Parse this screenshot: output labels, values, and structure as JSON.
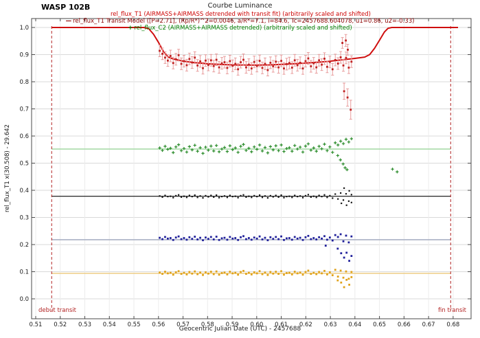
{
  "header": {
    "object": "WASP 102B",
    "chart_title": "Courbe Luminance"
  },
  "legend": {
    "entries": [
      {
        "marker_glyph": "",
        "label": "rel_flux_T1 (AIRMASS+AIRMASS detrended with transit fit) (arbitrarily scaled and shifted)",
        "color": "#cc0000"
      },
      {
        "marker_glyph": "—",
        "label": "rel_flux_T1 Transit Model ([P=2.71], (Rp/R*)^2=0.0046, a/R*=7.1, i=84.6, Tc=2457688.604078, u1=0.86, u2=-0.33)",
        "color": "#8b0000"
      },
      {
        "marker_glyph": "+",
        "label": "rel_flux_C2 (AIRMASS+AIRMASS detrended) (arbitrarily scaled and shifted)",
        "color": "#008000"
      }
    ]
  },
  "annotations": {
    "transit_start_label": "debut transit",
    "transit_end_label": "fin transit",
    "transit_start_x": 0.5165,
    "transit_end_x": 0.679,
    "line_color": "#b22222"
  },
  "chart_data": {
    "type": "scatter",
    "title": "Courbe Luminance",
    "xlabel": "Geocentric Julian Date (UTC) - 2457688",
    "ylabel": "rel_flux_T1 x(30.508) - 29.642",
    "x_ticks": [
      "0.51",
      "0.52",
      "0.53",
      "0.54",
      "0.55",
      "0.56",
      "0.57",
      "0.58",
      "0.59",
      "0.60",
      "0.61",
      "0.62",
      "0.63",
      "0.64",
      "0.65",
      "0.66",
      "0.67",
      "0.68"
    ],
    "y_ticks": [
      "0.0",
      "0.1",
      "0.2",
      "0.3",
      "0.4",
      "0.5",
      "0.6",
      "0.7",
      "0.8",
      "0.9",
      "1.0"
    ],
    "x_tick_values": [
      0.51,
      0.52,
      0.53,
      0.54,
      0.55,
      0.56,
      0.57,
      0.58,
      0.59,
      0.6,
      0.61,
      0.62,
      0.63,
      0.64,
      0.65,
      0.66,
      0.67,
      0.68
    ],
    "y_tick_values": [
      0.0,
      0.1,
      0.2,
      0.3,
      0.4,
      0.5,
      0.6,
      0.7,
      0.8,
      0.9,
      1.0
    ],
    "x_range": [
      0.50832,
      0.68731
    ],
    "y_range": [
      -0.0734,
      1.0329
    ],
    "grid": true,
    "legend_position": "top-center",
    "model": {
      "name": "rel_flux_T1 Transit Model",
      "color": "#cf0e0e",
      "points": [
        [
          0.5165,
          1.0
        ],
        [
          0.554,
          1.0
        ],
        [
          0.556,
          0.996
        ],
        [
          0.558,
          0.975
        ],
        [
          0.56,
          0.945
        ],
        [
          0.562,
          0.912
        ],
        [
          0.564,
          0.891
        ],
        [
          0.566,
          0.884
        ],
        [
          0.57,
          0.876
        ],
        [
          0.575,
          0.87
        ],
        [
          0.58,
          0.866
        ],
        [
          0.585,
          0.864
        ],
        [
          0.59,
          0.862
        ],
        [
          0.595,
          0.8615
        ],
        [
          0.6,
          0.8615
        ],
        [
          0.605,
          0.862
        ],
        [
          0.61,
          0.864
        ],
        [
          0.615,
          0.866
        ],
        [
          0.62,
          0.869
        ],
        [
          0.625,
          0.872
        ],
        [
          0.63,
          0.876
        ],
        [
          0.635,
          0.881
        ],
        [
          0.64,
          0.886
        ],
        [
          0.644,
          0.891
        ],
        [
          0.646,
          0.9
        ],
        [
          0.648,
          0.923
        ],
        [
          0.65,
          0.953
        ],
        [
          0.652,
          0.983
        ],
        [
          0.6535,
          0.997
        ],
        [
          0.655,
          1.0
        ],
        [
          0.682,
          1.0
        ]
      ]
    },
    "x_common": [
      0.5605,
      0.5616,
      0.5627,
      0.5638,
      0.5649,
      0.566,
      0.5671,
      0.5682,
      0.5693,
      0.5704,
      0.5715,
      0.5726,
      0.5737,
      0.5748,
      0.5759,
      0.577,
      0.5781,
      0.5792,
      0.5803,
      0.5814,
      0.5825,
      0.5836,
      0.5847,
      0.5858,
      0.5869,
      0.588,
      0.5891,
      0.5902,
      0.5913,
      0.5924,
      0.5935,
      0.5946,
      0.5957,
      0.5968,
      0.5979,
      0.599,
      0.6001,
      0.6012,
      0.6023,
      0.6034,
      0.6045,
      0.6056,
      0.6067,
      0.6078,
      0.6089,
      0.61,
      0.6111,
      0.6122,
      0.6133,
      0.6144,
      0.6155,
      0.6166,
      0.6177,
      0.6188,
      0.6199,
      0.621,
      0.6221,
      0.6232,
      0.6243,
      0.6254,
      0.6265,
      0.6276,
      0.6287,
      0.6298,
      0.6309,
      0.632,
      0.6331,
      0.6342,
      0.6353,
      0.6364,
      0.6375,
      0.6386
    ],
    "series": [
      {
        "id": "red-target",
        "name": "rel_flux_T1",
        "marker": "square",
        "color": "#bf2020",
        "errorbar_color": "#e89b9b",
        "err": 0.0215,
        "y": [
          0.914,
          0.903,
          0.889,
          0.878,
          0.895,
          0.869,
          0.883,
          0.898,
          0.866,
          0.876,
          0.861,
          0.884,
          0.871,
          0.889,
          0.86,
          0.875,
          0.85,
          0.878,
          0.862,
          0.879,
          0.858,
          0.881,
          0.853,
          0.868,
          0.872,
          0.851,
          0.876,
          0.859,
          0.866,
          0.846,
          0.872,
          0.881,
          0.853,
          0.863,
          0.849,
          0.873,
          0.858,
          0.877,
          0.851,
          0.866,
          0.843,
          0.87,
          0.857,
          0.874,
          0.853,
          0.877,
          0.849,
          0.865,
          0.869,
          0.852,
          0.879,
          0.861,
          0.87,
          0.849,
          0.876,
          0.886,
          0.857,
          0.868,
          0.853,
          0.879,
          0.863,
          0.885,
          0.855,
          0.873,
          0.846,
          0.88,
          0.867,
          0.89,
          0.86,
          0.888,
          0.852,
          0.874
        ],
        "outliers": [
          [
            0.6349,
            0.943,
            0.02
          ],
          [
            0.6363,
            0.952,
            0.022
          ],
          [
            0.6371,
            0.918,
            0.02
          ],
          [
            0.6356,
            0.765,
            0.03
          ],
          [
            0.637,
            0.742,
            0.032
          ],
          [
            0.6383,
            0.697,
            0.035
          ]
        ]
      },
      {
        "id": "green-comparison",
        "name": "rel_flux_C2",
        "marker": "plus",
        "color": "#2a8c2a",
        "baseline": 0.552,
        "baseline_color": "#a9dca9",
        "y": [
          0.556,
          0.547,
          0.562,
          0.551,
          0.555,
          0.539,
          0.56,
          0.568,
          0.546,
          0.554,
          0.541,
          0.561,
          0.549,
          0.566,
          0.544,
          0.557,
          0.536,
          0.559,
          0.548,
          0.563,
          0.545,
          0.565,
          0.542,
          0.552,
          0.558,
          0.543,
          0.564,
          0.55,
          0.556,
          0.54,
          0.562,
          0.569,
          0.547,
          0.555,
          0.542,
          0.56,
          0.551,
          0.567,
          0.545,
          0.558,
          0.538,
          0.561,
          0.549,
          0.564,
          0.546,
          0.567,
          0.543,
          0.554,
          0.557,
          0.544,
          0.565,
          0.552,
          0.559,
          0.541,
          0.563,
          0.571,
          0.548,
          0.556,
          0.544,
          0.562,
          0.553,
          0.57,
          0.546,
          0.56,
          0.54,
          0.575,
          0.567,
          0.581,
          0.572,
          0.588,
          0.578,
          0.59
        ],
        "outliers": [
          [
            0.633,
            0.528
          ],
          [
            0.6341,
            0.512
          ],
          [
            0.6352,
            0.497
          ],
          [
            0.636,
            0.483
          ],
          [
            0.6368,
            0.476
          ],
          [
            0.6553,
            0.478
          ],
          [
            0.6572,
            0.468
          ]
        ]
      },
      {
        "id": "black-series",
        "name": "",
        "marker": "square",
        "color": "#161616",
        "baseline": 0.378,
        "baseline_color": "#0a0a0a",
        "y": [
          0.379,
          0.375,
          0.381,
          0.377,
          0.378,
          0.373,
          0.38,
          0.383,
          0.375,
          0.378,
          0.374,
          0.381,
          0.377,
          0.382,
          0.374,
          0.379,
          0.372,
          0.38,
          0.376,
          0.381,
          0.375,
          0.382,
          0.373,
          0.377,
          0.379,
          0.374,
          0.381,
          0.377,
          0.378,
          0.373,
          0.38,
          0.383,
          0.375,
          0.378,
          0.374,
          0.38,
          0.377,
          0.382,
          0.374,
          0.379,
          0.372,
          0.38,
          0.376,
          0.381,
          0.375,
          0.382,
          0.373,
          0.377,
          0.378,
          0.374,
          0.381,
          0.377,
          0.379,
          0.373,
          0.38,
          0.384,
          0.375,
          0.378,
          0.374,
          0.381,
          0.377,
          0.383,
          0.374,
          0.38,
          0.371,
          0.386,
          0.368,
          0.39,
          0.364,
          0.387,
          0.36,
          0.384
        ],
        "outliers": [
          [
            0.6345,
            0.352
          ],
          [
            0.6356,
            0.408
          ],
          [
            0.6366,
            0.345
          ],
          [
            0.6377,
            0.398
          ],
          [
            0.6386,
            0.355
          ]
        ]
      },
      {
        "id": "blue-series",
        "name": "",
        "marker": "square",
        "color": "#20209a",
        "baseline": 0.218,
        "baseline_color": "#aab0c4",
        "y": [
          0.225,
          0.22,
          0.228,
          0.222,
          0.224,
          0.217,
          0.226,
          0.23,
          0.22,
          0.224,
          0.218,
          0.227,
          0.221,
          0.229,
          0.219,
          0.225,
          0.216,
          0.226,
          0.221,
          0.228,
          0.219,
          0.229,
          0.217,
          0.223,
          0.225,
          0.218,
          0.228,
          0.222,
          0.224,
          0.217,
          0.227,
          0.231,
          0.22,
          0.224,
          0.218,
          0.226,
          0.222,
          0.23,
          0.219,
          0.225,
          0.216,
          0.227,
          0.221,
          0.228,
          0.22,
          0.23,
          0.217,
          0.223,
          0.224,
          0.218,
          0.228,
          0.222,
          0.225,
          0.217,
          0.227,
          0.232,
          0.22,
          0.224,
          0.219,
          0.227,
          0.222,
          0.231,
          0.218,
          0.226,
          0.215,
          0.235,
          0.228,
          0.238,
          0.212,
          0.233,
          0.208,
          0.23
        ],
        "outliers": [
          [
            0.6281,
            0.196
          ],
          [
            0.633,
            0.185
          ],
          [
            0.6344,
            0.168
          ],
          [
            0.6356,
            0.152
          ],
          [
            0.6366,
            0.17
          ],
          [
            0.6377,
            0.14
          ],
          [
            0.6386,
            0.158
          ]
        ]
      },
      {
        "id": "orange-series",
        "name": "",
        "marker": "square",
        "color": "#e0a21a",
        "baseline": 0.094,
        "baseline_color": "#edcc82",
        "y": [
          0.097,
          0.092,
          0.1,
          0.094,
          0.096,
          0.089,
          0.098,
          0.102,
          0.092,
          0.096,
          0.09,
          0.099,
          0.093,
          0.101,
          0.091,
          0.097,
          0.088,
          0.098,
          0.093,
          0.1,
          0.091,
          0.101,
          0.089,
          0.095,
          0.097,
          0.09,
          0.1,
          0.094,
          0.096,
          0.089,
          0.099,
          0.103,
          0.092,
          0.096,
          0.09,
          0.098,
          0.094,
          0.102,
          0.091,
          0.097,
          0.088,
          0.099,
          0.093,
          0.1,
          0.092,
          0.102,
          0.089,
          0.095,
          0.096,
          0.09,
          0.1,
          0.094,
          0.097,
          0.089,
          0.099,
          0.104,
          0.092,
          0.096,
          0.091,
          0.099,
          0.094,
          0.103,
          0.09,
          0.098,
          0.087,
          0.107,
          0.082,
          0.104,
          0.078,
          0.101,
          0.074,
          0.099
        ],
        "outliers": [
          [
            0.633,
            0.068
          ],
          [
            0.6344,
            0.06
          ],
          [
            0.6356,
            0.043
          ],
          [
            0.6366,
            0.07
          ],
          [
            0.6377,
            0.052
          ],
          [
            0.6386,
            0.08
          ]
        ]
      }
    ]
  }
}
